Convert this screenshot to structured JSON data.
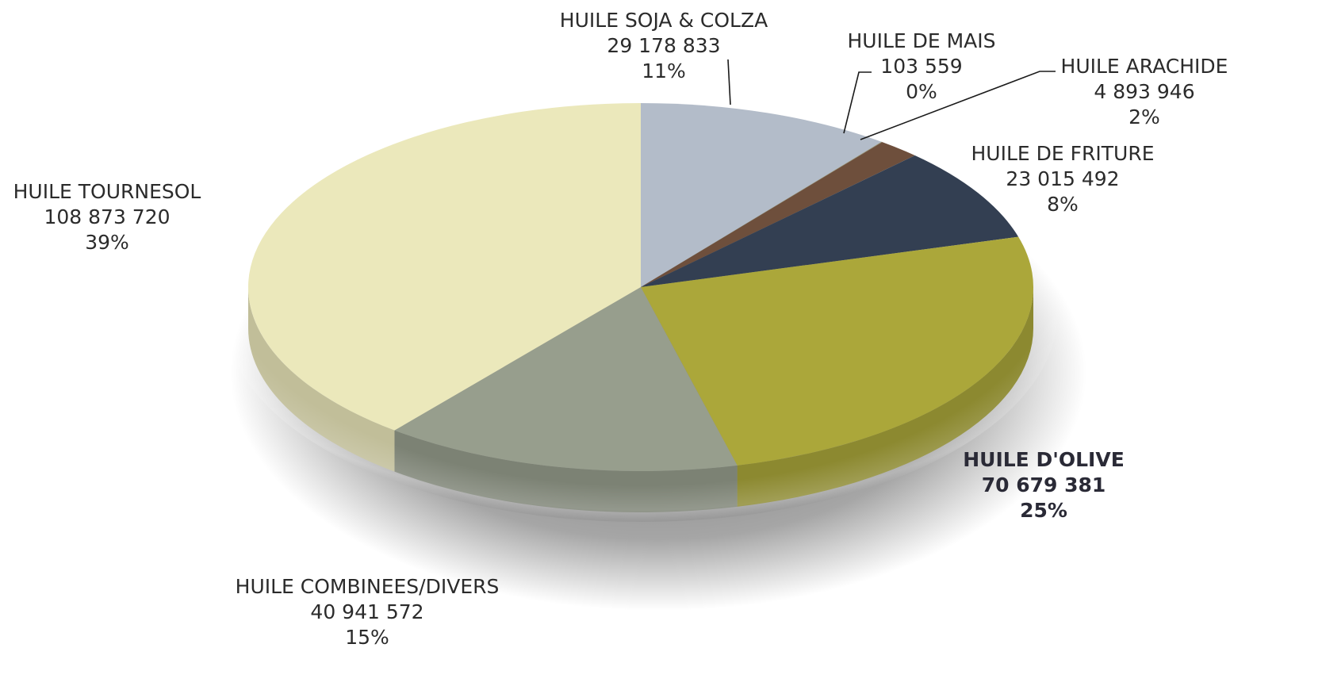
{
  "chart_data": {
    "type": "pie",
    "title": "",
    "slices": [
      {
        "label": "HUILE SOJA & COLZA",
        "value_text": "29 178 833",
        "pct_text": "11%",
        "value": 29178833,
        "color": "#b3bcc9"
      },
      {
        "label": "HUILE DE MAIS",
        "value_text": "103 559",
        "pct_text": "0%",
        "value": 103559,
        "color": "#8a8a6a"
      },
      {
        "label": "HUILE ARACHIDE",
        "value_text": "4 893 946",
        "pct_text": "2%",
        "value": 4893946,
        "color": "#6e4f3c"
      },
      {
        "label": "HUILE DE FRITURE",
        "value_text": "23 015 492",
        "pct_text": "8%",
        "value": 23015492,
        "color": "#333f52"
      },
      {
        "label": "HUILE D'OLIVE",
        "value_text": "70 679 381",
        "pct_text": "25%",
        "value": 70679381,
        "color": "#aba73a",
        "emphasis": true
      },
      {
        "label": "HUILE COMBINEES/DIVERS",
        "value_text": "40 941 572",
        "pct_text": "15%",
        "value": 40941572,
        "color": "#979e8d"
      },
      {
        "label": "HUILE TOURNESOL",
        "value_text": "108 873 720",
        "pct_text": "39%",
        "value": 108873720,
        "color": "#ebe8bb"
      }
    ]
  }
}
